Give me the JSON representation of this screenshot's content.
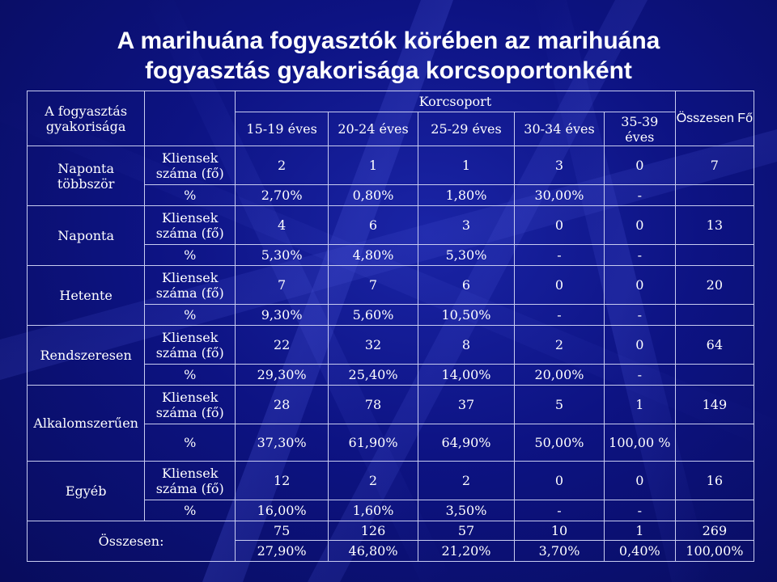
{
  "slide": {
    "title_line1": "A marihuána fogyasztók körében az marihuána",
    "title_line2": "fogyasztás gyakorisága korcsoportonként"
  },
  "table": {
    "corner_label": "A fogyasztás gyakorisága",
    "group_header": "Korcsoport",
    "columns": [
      "15-19 éves",
      "20-24 éves",
      "25-29 éves",
      "30-34 éves",
      "35-39 éves"
    ],
    "total_header": "Összesen Fő",
    "count_label": "Kliensek száma (fő)",
    "percent_label": "%",
    "rows": [
      {
        "label": "Naponta többször",
        "counts": [
          "2",
          "1",
          "1",
          "3",
          "0"
        ],
        "total": "7",
        "percents": [
          "2,70%",
          "0,80%",
          "1,80%",
          "30,00%",
          "-"
        ],
        "percent_total": ""
      },
      {
        "label": "Naponta",
        "counts": [
          "4",
          "6",
          "3",
          "0",
          "0"
        ],
        "total": "13",
        "percents": [
          "5,30%",
          "4,80%",
          "5,30%",
          "-",
          "-"
        ],
        "percent_total": ""
      },
      {
        "label": "Hetente",
        "counts": [
          "7",
          "7",
          "6",
          "0",
          "0"
        ],
        "total": "20",
        "percents": [
          "9,30%",
          "5,60%",
          "10,50%",
          "-",
          "-"
        ],
        "percent_total": ""
      },
      {
        "label": "Rendszeresen",
        "counts": [
          "22",
          "32",
          "8",
          "2",
          "0"
        ],
        "total": "64",
        "percents": [
          "29,30%",
          "25,40%",
          "14,00%",
          "20,00%",
          "-"
        ],
        "percent_total": ""
      },
      {
        "label": "Alkalomszerűen",
        "counts": [
          "28",
          "78",
          "37",
          "5",
          "1"
        ],
        "total": "149",
        "percents": [
          "37,30%",
          "61,90%",
          "64,90%",
          "50,00%",
          "100,00 %"
        ],
        "percent_total": ""
      },
      {
        "label": "Egyéb",
        "counts": [
          "12",
          "2",
          "2",
          "0",
          "0"
        ],
        "total": "16",
        "percents": [
          "16,00%",
          "1,60%",
          "3,50%",
          "-",
          "-"
        ],
        "percent_total": ""
      }
    ],
    "totals": {
      "label": "Összesen:",
      "counts": [
        "75",
        "126",
        "57",
        "10",
        "1"
      ],
      "count_total": "269",
      "percents": [
        "27,90%",
        "46,80%",
        "21,20%",
        "3,70%",
        "0,40%"
      ],
      "percent_total": "100,00%"
    }
  },
  "colors": {
    "background": "#0d1383",
    "text": "#ffffff",
    "grid": "#c8ccf0"
  }
}
